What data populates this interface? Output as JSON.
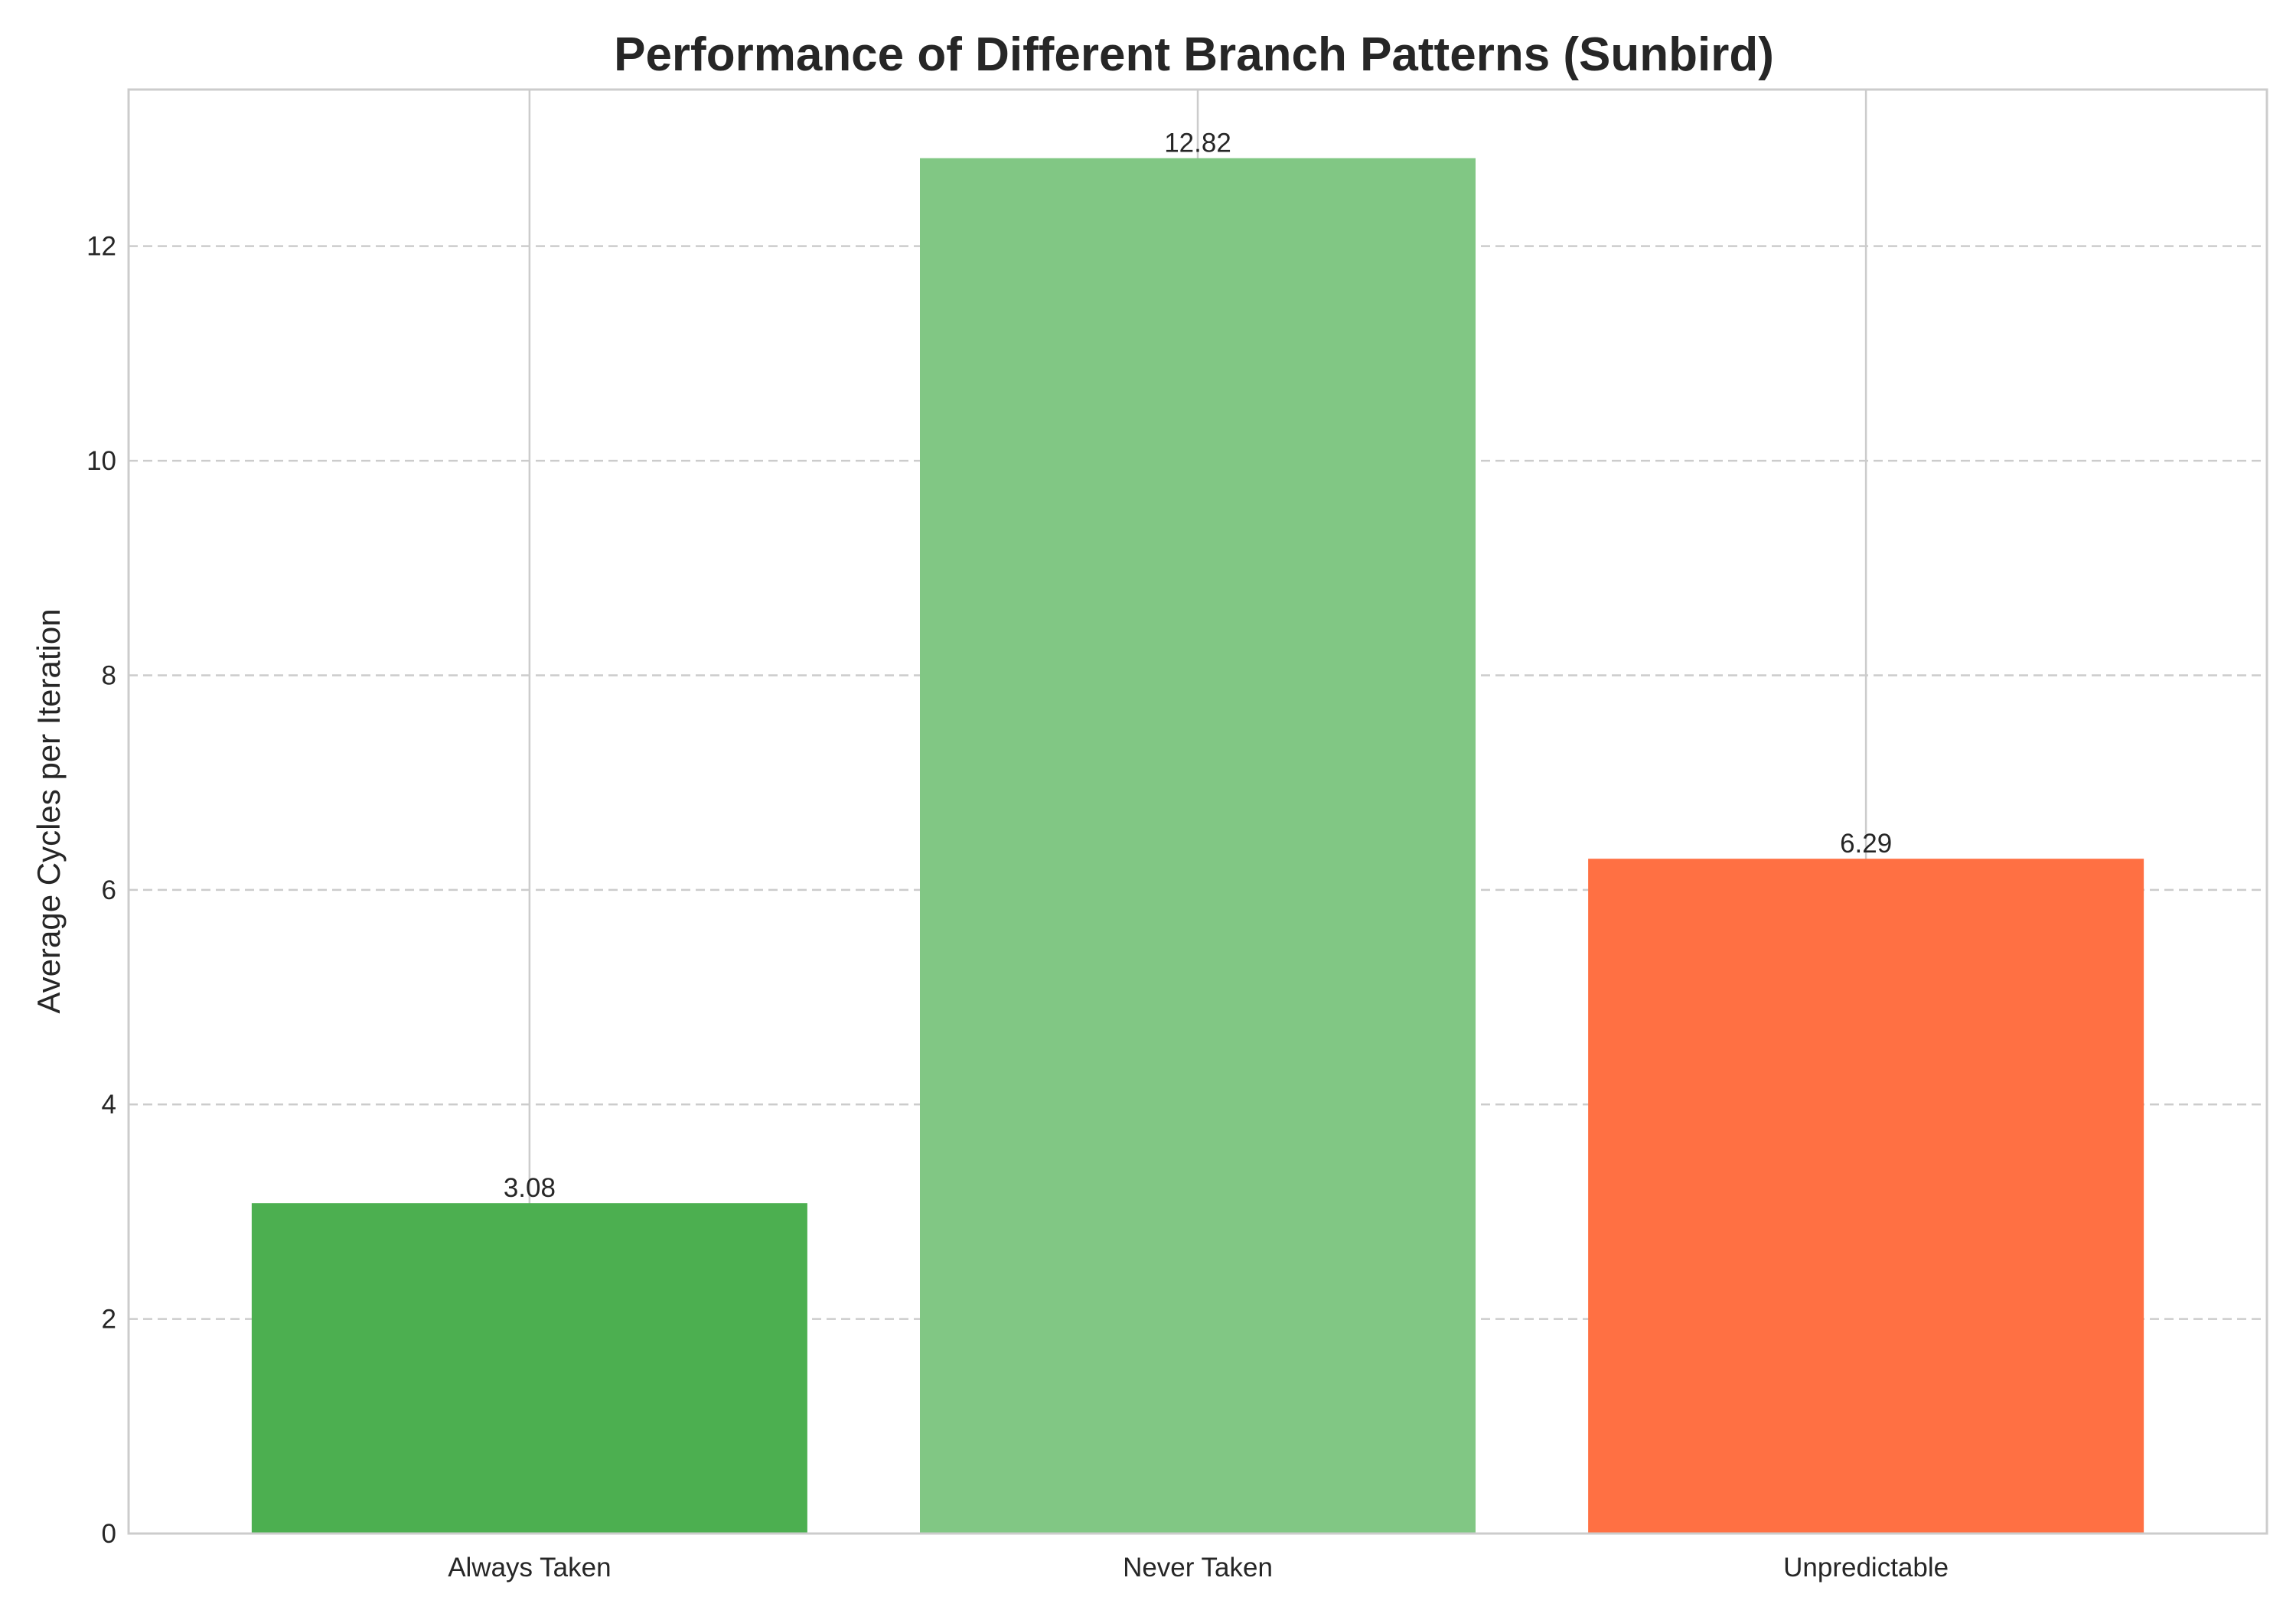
{
  "chart_data": {
    "type": "bar",
    "title": "Performance of Different Branch Patterns (Sunbird)",
    "xlabel": "",
    "ylabel": "Average Cycles per Iteration",
    "categories": [
      "Always Taken",
      "Never Taken",
      "Unpredictable"
    ],
    "values": [
      3.08,
      12.82,
      6.29
    ],
    "value_labels": [
      "3.08",
      "12.82",
      "6.29"
    ],
    "colors": [
      "#4caf50",
      "#81c784",
      "#ff7043"
    ],
    "ylim": [
      0,
      13.46
    ],
    "yticks": [
      0,
      2,
      4,
      6,
      8,
      10,
      12
    ],
    "ytick_labels": [
      "0",
      "2",
      "4",
      "6",
      "8",
      "10",
      "12"
    ],
    "grid": true,
    "legend": "none"
  }
}
